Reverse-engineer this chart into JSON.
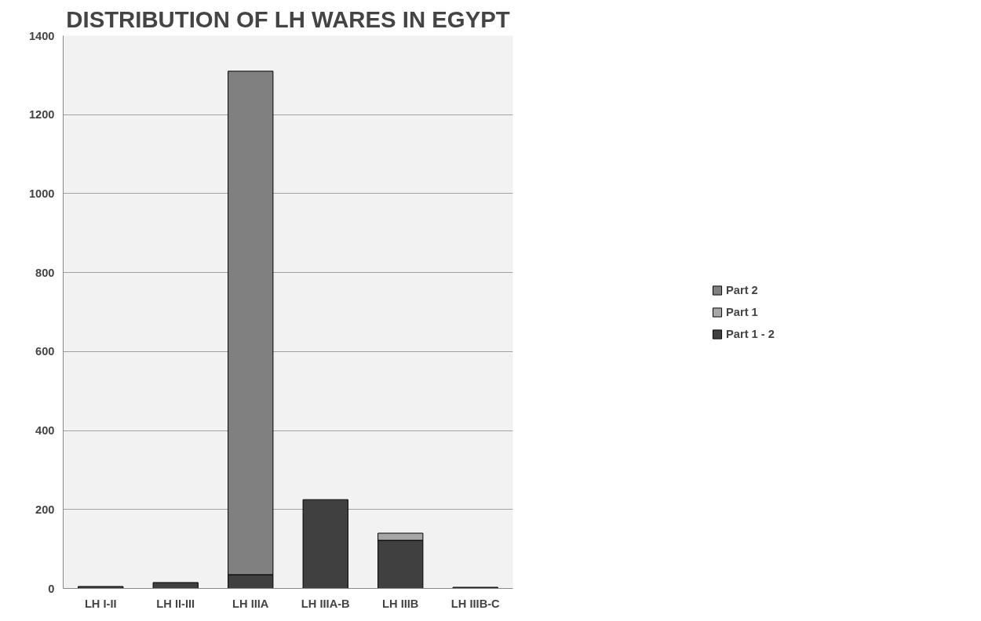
{
  "chart_data": {
    "type": "bar",
    "title": "DISTRIBUTION OF LH WARES IN EGYPT",
    "categories": [
      "LH I-II",
      "LH II-III",
      "LH IIIA",
      "LH IIIA-B",
      "LH IIIB",
      "LH IIIB-C"
    ],
    "stacked": true,
    "series": [
      {
        "name": "Part 1 - 2",
        "color": "#404040",
        "values": [
          5,
          15,
          35,
          225,
          122,
          3
        ]
      },
      {
        "name": "Part 1",
        "color": "#a6a6a6",
        "values": [
          null,
          null,
          null,
          null,
          18,
          null
        ]
      },
      {
        "name": "Part 2",
        "color": "#808080",
        "values": [
          null,
          null,
          1275,
          null,
          null,
          null
        ]
      }
    ],
    "ylim": [
      0,
      1400
    ],
    "yticks": [
      0,
      200,
      400,
      600,
      800,
      1000,
      1200,
      1400
    ],
    "grid": "y",
    "legend": "right"
  }
}
